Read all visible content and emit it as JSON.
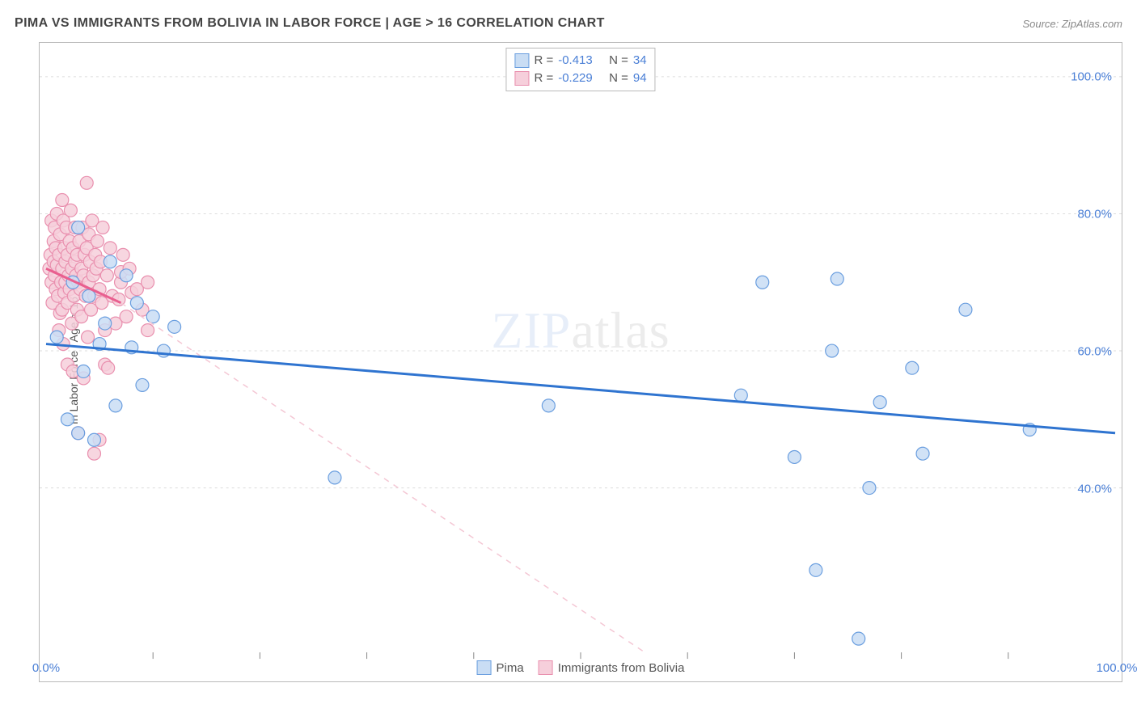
{
  "title": "PIMA VS IMMIGRANTS FROM BOLIVIA IN LABOR FORCE | AGE > 16 CORRELATION CHART",
  "source": "Source: ZipAtlas.com",
  "ylabel": "In Labor Force | Age > 16",
  "watermark_a": "ZIP",
  "watermark_b": "atlas",
  "chart": {
    "type": "scatter",
    "background_color": "#ffffff",
    "border_color": "#b9b9b9",
    "grid_color": "#dcdcdc",
    "tick_color": "#888888",
    "xlim": [
      0,
      100
    ],
    "ylim": [
      16,
      104
    ],
    "yticks": [
      40,
      60,
      80,
      100
    ],
    "ytick_labels": [
      "40.0%",
      "60.0%",
      "80.0%",
      "100.0%"
    ],
    "xtick_positions": [
      0,
      100
    ],
    "xtick_labels": [
      "0.0%",
      "100.0%"
    ],
    "xtick_marks": [
      10,
      20,
      30,
      40,
      50,
      60,
      70,
      80,
      90
    ],
    "marker_radius": 8,
    "series_a": {
      "name": "Pima",
      "fill": "#c9ddf4",
      "stroke": "#6a9edf",
      "line_color": "#2f74d0",
      "line_width": 3,
      "R": "-0.413",
      "N": "34",
      "trend": {
        "x0": 0,
        "y0": 61,
        "x1": 100,
        "y1": 48
      },
      "points": [
        [
          1,
          62
        ],
        [
          2,
          50
        ],
        [
          2.5,
          70
        ],
        [
          3,
          78
        ],
        [
          3,
          48
        ],
        [
          3.5,
          57
        ],
        [
          4,
          68
        ],
        [
          4.5,
          47
        ],
        [
          5,
          61
        ],
        [
          5.5,
          64
        ],
        [
          6,
          73
        ],
        [
          6.5,
          52
        ],
        [
          7.5,
          71
        ],
        [
          8,
          60.5
        ],
        [
          8.5,
          67
        ],
        [
          9,
          55
        ],
        [
          10,
          65
        ],
        [
          11,
          60
        ],
        [
          12,
          63.5
        ],
        [
          27,
          41.5
        ],
        [
          47,
          52
        ],
        [
          65,
          53.5
        ],
        [
          67,
          70
        ],
        [
          70,
          44.5
        ],
        [
          72,
          28
        ],
        [
          73.5,
          60
        ],
        [
          74,
          70.5
        ],
        [
          76,
          18
        ],
        [
          77,
          40
        ],
        [
          78,
          52.5
        ],
        [
          81,
          57.5
        ],
        [
          82,
          45
        ],
        [
          86,
          66
        ],
        [
          92,
          48.5
        ]
      ]
    },
    "series_b": {
      "name": "Immigrants from Bolivia",
      "fill": "#f6cfdb",
      "stroke": "#e98fae",
      "line_color": "#e95f8f",
      "line_width": 3,
      "dash_color": "#f4c7d4",
      "R": "-0.229",
      "N": "94",
      "trend_solid": {
        "x0": 0,
        "y0": 72,
        "x1": 7,
        "y1": 67
      },
      "trend_dash": {
        "x0": 7,
        "y0": 67,
        "x1": 56,
        "y1": 16
      },
      "points": [
        [
          0.3,
          72
        ],
        [
          0.4,
          74
        ],
        [
          0.5,
          79
        ],
        [
          0.5,
          70
        ],
        [
          0.6,
          67
        ],
        [
          0.7,
          76
        ],
        [
          0.7,
          73
        ],
        [
          0.8,
          71
        ],
        [
          0.8,
          78
        ],
        [
          0.9,
          69
        ],
        [
          0.9,
          75
        ],
        [
          1.0,
          80
        ],
        [
          1.0,
          72.5
        ],
        [
          1.1,
          68
        ],
        [
          1.2,
          63
        ],
        [
          1.2,
          74
        ],
        [
          1.3,
          65.5
        ],
        [
          1.3,
          77
        ],
        [
          1.4,
          70
        ],
        [
          1.5,
          82
        ],
        [
          1.5,
          72
        ],
        [
          1.5,
          66
        ],
        [
          1.6,
          79
        ],
        [
          1.6,
          61
        ],
        [
          1.7,
          75
        ],
        [
          1.7,
          68.5
        ],
        [
          1.8,
          73
        ],
        [
          1.8,
          70
        ],
        [
          1.9,
          78
        ],
        [
          2.0,
          58
        ],
        [
          2.0,
          74
        ],
        [
          2.0,
          67
        ],
        [
          2.1,
          71
        ],
        [
          2.2,
          76
        ],
        [
          2.2,
          69
        ],
        [
          2.3,
          80.5
        ],
        [
          2.4,
          64
        ],
        [
          2.4,
          72
        ],
        [
          2.5,
          57
        ],
        [
          2.5,
          75
        ],
        [
          2.6,
          68
        ],
        [
          2.7,
          73
        ],
        [
          2.7,
          78
        ],
        [
          2.8,
          71
        ],
        [
          2.9,
          66
        ],
        [
          2.9,
          74
        ],
        [
          3.0,
          70
        ],
        [
          3.0,
          48
        ],
        [
          3.1,
          76
        ],
        [
          3.2,
          69
        ],
        [
          3.3,
          72
        ],
        [
          3.3,
          65
        ],
        [
          3.4,
          78
        ],
        [
          3.5,
          71
        ],
        [
          3.5,
          56
        ],
        [
          3.6,
          74
        ],
        [
          3.7,
          68
        ],
        [
          3.8,
          75
        ],
        [
          3.8,
          84.5
        ],
        [
          3.9,
          62
        ],
        [
          4.0,
          70
        ],
        [
          4.0,
          77
        ],
        [
          4.1,
          73
        ],
        [
          4.2,
          66
        ],
        [
          4.3,
          79
        ],
        [
          4.4,
          71
        ],
        [
          4.5,
          45
        ],
        [
          4.5,
          68
        ],
        [
          4.6,
          74
        ],
        [
          4.7,
          72
        ],
        [
          4.8,
          76
        ],
        [
          5.0,
          47
        ],
        [
          5.0,
          69
        ],
        [
          5.1,
          73
        ],
        [
          5.2,
          67
        ],
        [
          5.3,
          78
        ],
        [
          5.5,
          63
        ],
        [
          5.5,
          58
        ],
        [
          5.7,
          71
        ],
        [
          5.8,
          57.5
        ],
        [
          6.0,
          75
        ],
        [
          6.2,
          68
        ],
        [
          6.5,
          64
        ],
        [
          6.8,
          67.5
        ],
        [
          7.0,
          70
        ],
        [
          7.0,
          71.5
        ],
        [
          7.2,
          74
        ],
        [
          7.5,
          65
        ],
        [
          7.8,
          72
        ],
        [
          8.0,
          68.5
        ],
        [
          8.5,
          69
        ],
        [
          9.0,
          66
        ],
        [
          9.5,
          70
        ],
        [
          9.5,
          63
        ]
      ]
    }
  },
  "corr_legend": {
    "r_label": "R =",
    "n_label": "N ="
  },
  "bottom_legend": {
    "a_label": "Pima",
    "b_label": "Immigrants from Bolivia"
  }
}
